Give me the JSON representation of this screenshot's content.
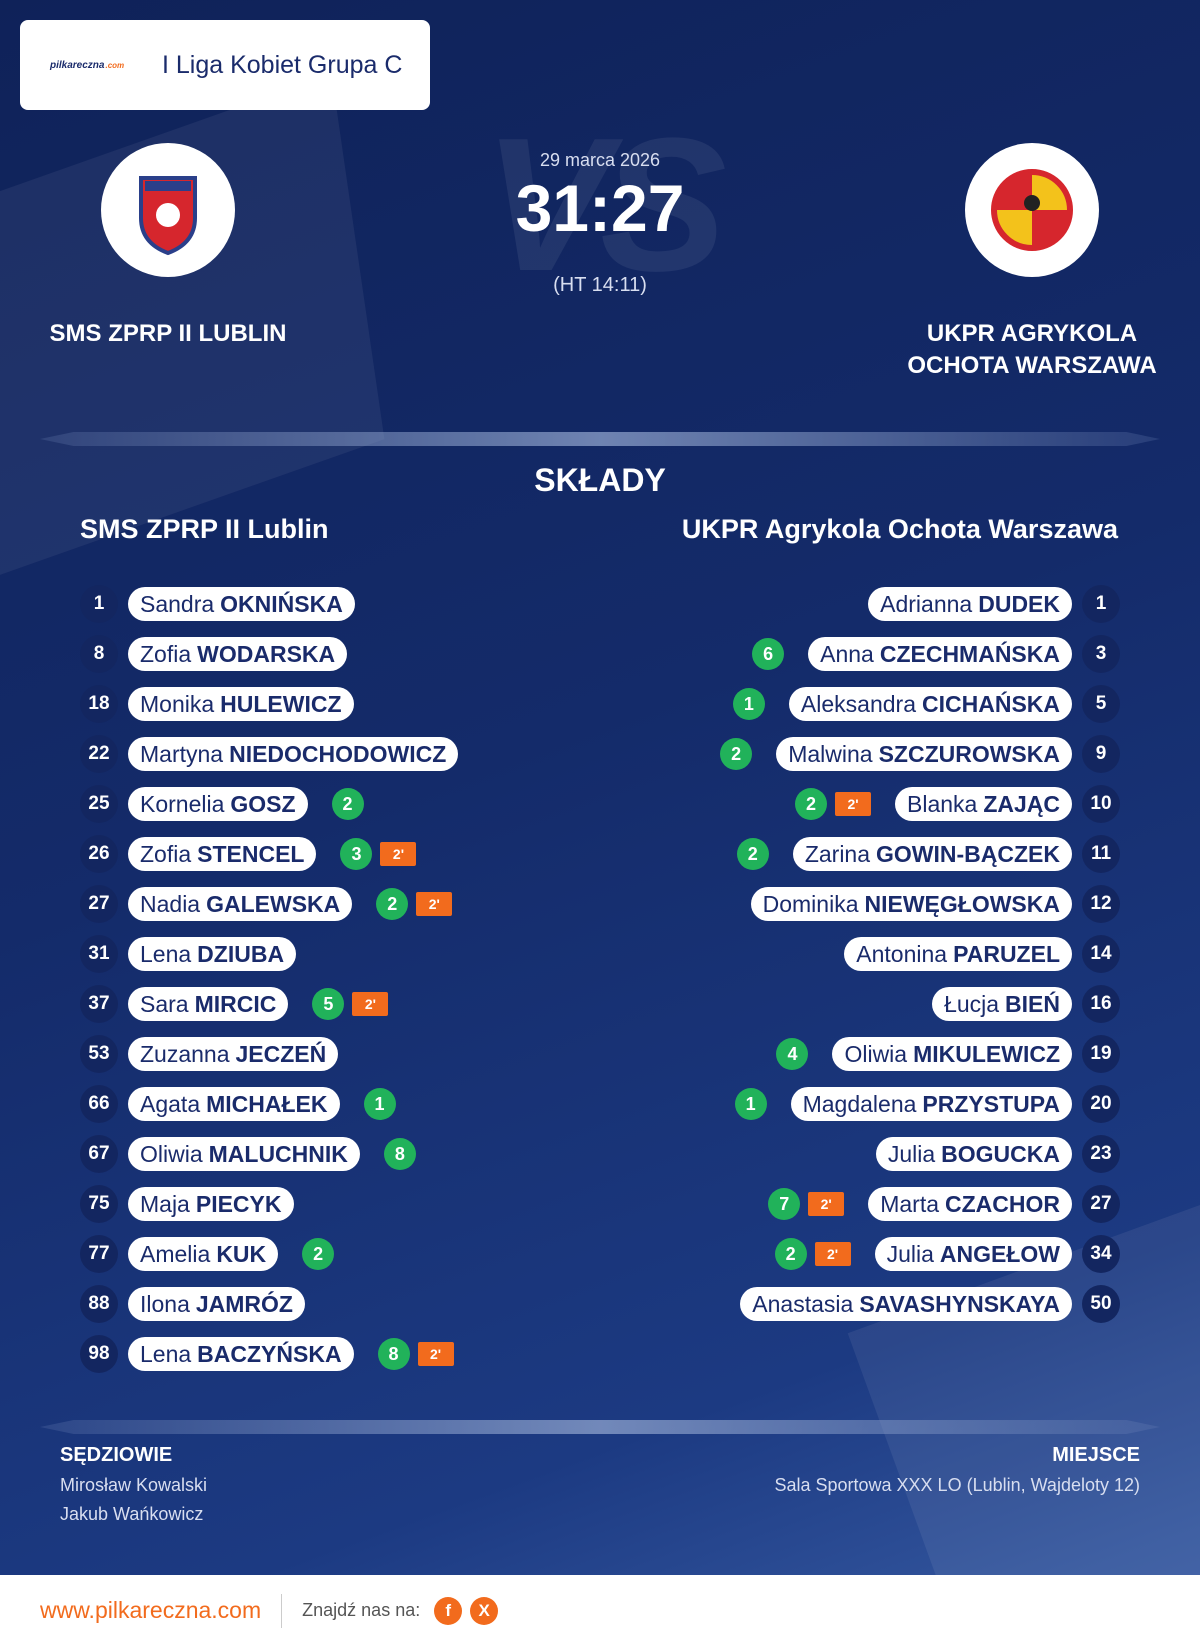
{
  "header": {
    "logo": {
      "name": "pilkareczna",
      "suffix": ".com"
    },
    "league": "I Liga Kobiet Grupa C"
  },
  "match": {
    "watermark": "VS",
    "date": "29 marca 2026",
    "score": "31:27",
    "halftime": "(HT 14:11)",
    "home": {
      "name_lines": [
        "SMS ZPRP II LUBLIN"
      ]
    },
    "away": {
      "name_lines": [
        "UKPR AGRYKOLA",
        "OCHOTA WARSZAWA"
      ]
    }
  },
  "lineups": {
    "title": "SKŁADY",
    "home": {
      "team": "SMS ZPRP II Lublin",
      "players": [
        {
          "number": 1,
          "first": "Sandra",
          "last": "OKNIŃSKA",
          "goals": null,
          "penalty": null
        },
        {
          "number": 8,
          "first": "Zofia",
          "last": "WODARSKA",
          "goals": null,
          "penalty": null
        },
        {
          "number": 18,
          "first": "Monika",
          "last": "HULEWICZ",
          "goals": null,
          "penalty": null
        },
        {
          "number": 22,
          "first": "Martyna",
          "last": "NIEDOCHODOWICZ",
          "goals": null,
          "penalty": null
        },
        {
          "number": 25,
          "first": "Kornelia",
          "last": "GOSZ",
          "goals": 2,
          "penalty": null
        },
        {
          "number": 26,
          "first": "Zofia",
          "last": "STENCEL",
          "goals": 3,
          "penalty": "2'"
        },
        {
          "number": 27,
          "first": "Nadia",
          "last": "GALEWSKA",
          "goals": 2,
          "penalty": "2'"
        },
        {
          "number": 31,
          "first": "Lena",
          "last": "DZIUBA",
          "goals": null,
          "penalty": null
        },
        {
          "number": 37,
          "first": "Sara",
          "last": "MIRCIC",
          "goals": 5,
          "penalty": "2'"
        },
        {
          "number": 53,
          "first": "Zuzanna",
          "last": "JECZEŃ",
          "goals": null,
          "penalty": null
        },
        {
          "number": 66,
          "first": "Agata",
          "last": "MICHAŁEK",
          "goals": 1,
          "penalty": null
        },
        {
          "number": 67,
          "first": "Oliwia",
          "last": "MALUCHNIK",
          "goals": 8,
          "penalty": null
        },
        {
          "number": 75,
          "first": "Maja",
          "last": "PIECYK",
          "goals": null,
          "penalty": null
        },
        {
          "number": 77,
          "first": "Amelia",
          "last": "KUK",
          "goals": 2,
          "penalty": null
        },
        {
          "number": 88,
          "first": "Ilona",
          "last": "JAMRÓZ",
          "goals": null,
          "penalty": null
        },
        {
          "number": 98,
          "first": "Lena",
          "last": "BACZYŃSKA",
          "goals": 8,
          "penalty": "2'"
        }
      ]
    },
    "away": {
      "team": "UKPR Agrykola Ochota Warszawa",
      "players": [
        {
          "number": 1,
          "first": "Adrianna",
          "last": "DUDEK",
          "goals": null,
          "penalty": null
        },
        {
          "number": 3,
          "first": "Anna",
          "last": "CZECHMAŃSKA",
          "goals": 6,
          "penalty": null
        },
        {
          "number": 5,
          "first": "Aleksandra",
          "last": "CICHAŃSKA",
          "goals": 1,
          "penalty": null
        },
        {
          "number": 9,
          "first": "Malwina",
          "last": "SZCZUROWSKA",
          "goals": 2,
          "penalty": null
        },
        {
          "number": 10,
          "first": "Blanka",
          "last": "ZAJĄC",
          "goals": 2,
          "penalty": "2'"
        },
        {
          "number": 11,
          "first": "Zarina",
          "last": "GOWIN-BĄCZEK",
          "goals": 2,
          "penalty": null
        },
        {
          "number": 12,
          "first": "Dominika",
          "last": "NIEWĘGŁOWSKA",
          "goals": null,
          "penalty": null
        },
        {
          "number": 14,
          "first": "Antonina",
          "last": "PARUZEL",
          "goals": null,
          "penalty": null
        },
        {
          "number": 16,
          "first": "Łucja",
          "last": "BIEŃ",
          "goals": null,
          "penalty": null
        },
        {
          "number": 19,
          "first": "Oliwia",
          "last": "MIKULEWICZ",
          "goals": 4,
          "penalty": null
        },
        {
          "number": 20,
          "first": "Magdalena",
          "last": "PRZYSTUPA",
          "goals": 1,
          "penalty": null
        },
        {
          "number": 23,
          "first": "Julia",
          "last": "BOGUCKA",
          "goals": null,
          "penalty": null
        },
        {
          "number": 27,
          "first": "Marta",
          "last": "CZACHOR",
          "goals": 7,
          "penalty": "2'"
        },
        {
          "number": 34,
          "first": "Julia",
          "last": "ANGEŁOW",
          "goals": 2,
          "penalty": "2'"
        },
        {
          "number": 50,
          "first": "Anastasia",
          "last": "SAVASHYNSKAYA",
          "goals": null,
          "penalty": null
        }
      ]
    }
  },
  "officials": {
    "label": "SĘDZIOWIE",
    "names": [
      "Mirosław Kowalski",
      "Jakub Wańkowicz"
    ]
  },
  "venue": {
    "label": "MIEJSCE",
    "value": "Sala Sportowa XXX LO (Lublin, Wajdeloty 12)"
  },
  "footer": {
    "url": "www.pilkareczna.com",
    "find_us": "Znajdź nas na:",
    "icons": [
      "f",
      "X"
    ]
  }
}
